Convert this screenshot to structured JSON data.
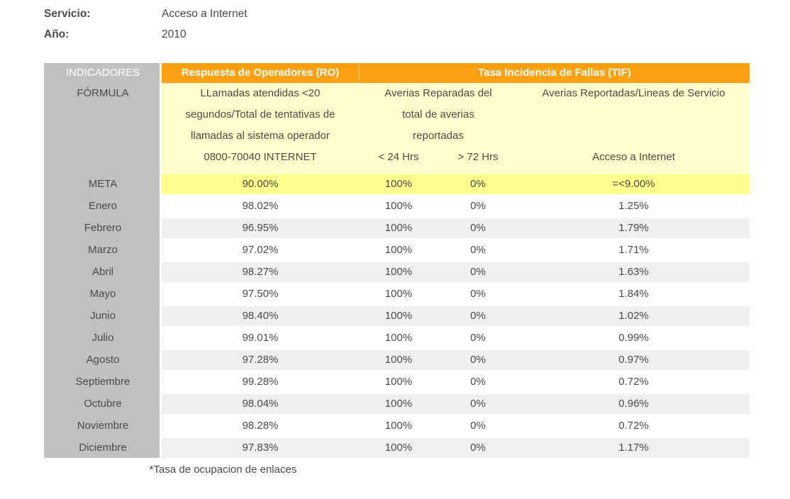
{
  "info": {
    "service_label": "Servicio:",
    "service_value": "Acceso a Internet",
    "year_label": "Año:",
    "year_value": "2010"
  },
  "table": {
    "indicators_header": "INDICADORES",
    "formula_header": "FÓRMULA",
    "group_ro": "Respuesta de Operadores (RO)",
    "group_tif": "Tasa Incidencia de Fallas (TIF)",
    "formula_ro_line1": "LLamadas atendidas <20",
    "formula_ro_line2": "segundos/Total de tentativas de",
    "formula_ro_line3": "llamadas al sistema operador",
    "formula_ro_subheader": "0800-70040 INTERNET",
    "formula_tif_repairs_line1": "Averias Reparadas del",
    "formula_tif_repairs_line2": "total de averias",
    "formula_tif_repairs_line3": "reportadas",
    "subheader_lt24": "< 24 Hrs",
    "subheader_gt72": "> 72 Hrs",
    "formula_tif_reports_line1": "Averias Reportadas/Lineas de Servicio",
    "formula_tif_reports_subheader": "Acceso a Internet",
    "meta": {
      "label": "META",
      "ro": "90.00%",
      "lt24": "100%",
      "gt72": "0%",
      "tif": "=<9.00%"
    },
    "rows": [
      {
        "label": "Enero",
        "ro": "98.02%",
        "lt24": "100%",
        "gt72": "0%",
        "tif": "1.25%"
      },
      {
        "label": "Febrero",
        "ro": "96.95%",
        "lt24": "100%",
        "gt72": "0%",
        "tif": "1.79%"
      },
      {
        "label": "Marzo",
        "ro": "97.02%",
        "lt24": "100%",
        "gt72": "0%",
        "tif": "1.71%"
      },
      {
        "label": "Abril",
        "ro": "98.27%",
        "lt24": "100%",
        "gt72": "0%",
        "tif": "1.63%"
      },
      {
        "label": "Mayo",
        "ro": "97.50%",
        "lt24": "100%",
        "gt72": "0%",
        "tif": "1.84%"
      },
      {
        "label": "Junio",
        "ro": "98.40%",
        "lt24": "100%",
        "gt72": "0%",
        "tif": "1.02%"
      },
      {
        "label": "Julio",
        "ro": "99.01%",
        "lt24": "100%",
        "gt72": "0%",
        "tif": "0.99%"
      },
      {
        "label": "Agosto",
        "ro": "97.28%",
        "lt24": "100%",
        "gt72": "0%",
        "tif": "0.97%"
      },
      {
        "label": "Septiembre",
        "ro": "99.28%",
        "lt24": "100%",
        "gt72": "0%",
        "tif": "0.72%"
      },
      {
        "label": "Octubre",
        "ro": "98.04%",
        "lt24": "100%",
        "gt72": "0%",
        "tif": "0.96%"
      },
      {
        "label": "Noviembre",
        "ro": "98.28%",
        "lt24": "100%",
        "gt72": "0%",
        "tif": "0.72%"
      },
      {
        "label": "Diciembre",
        "ro": "97.83%",
        "lt24": "100%",
        "gt72": "0%",
        "tif": "1.17%"
      }
    ],
    "footnote": "*Tasa de ocupacion de enlaces"
  },
  "colors": {
    "header_orange": "#FFA011",
    "label_gray": "#C0C0C0",
    "formula_cream": "#FFFFCC",
    "meta_yellow": "#FFFF8C",
    "row_alt_gray": "#EFEFEF",
    "text_dark": "#4A4A4A"
  }
}
